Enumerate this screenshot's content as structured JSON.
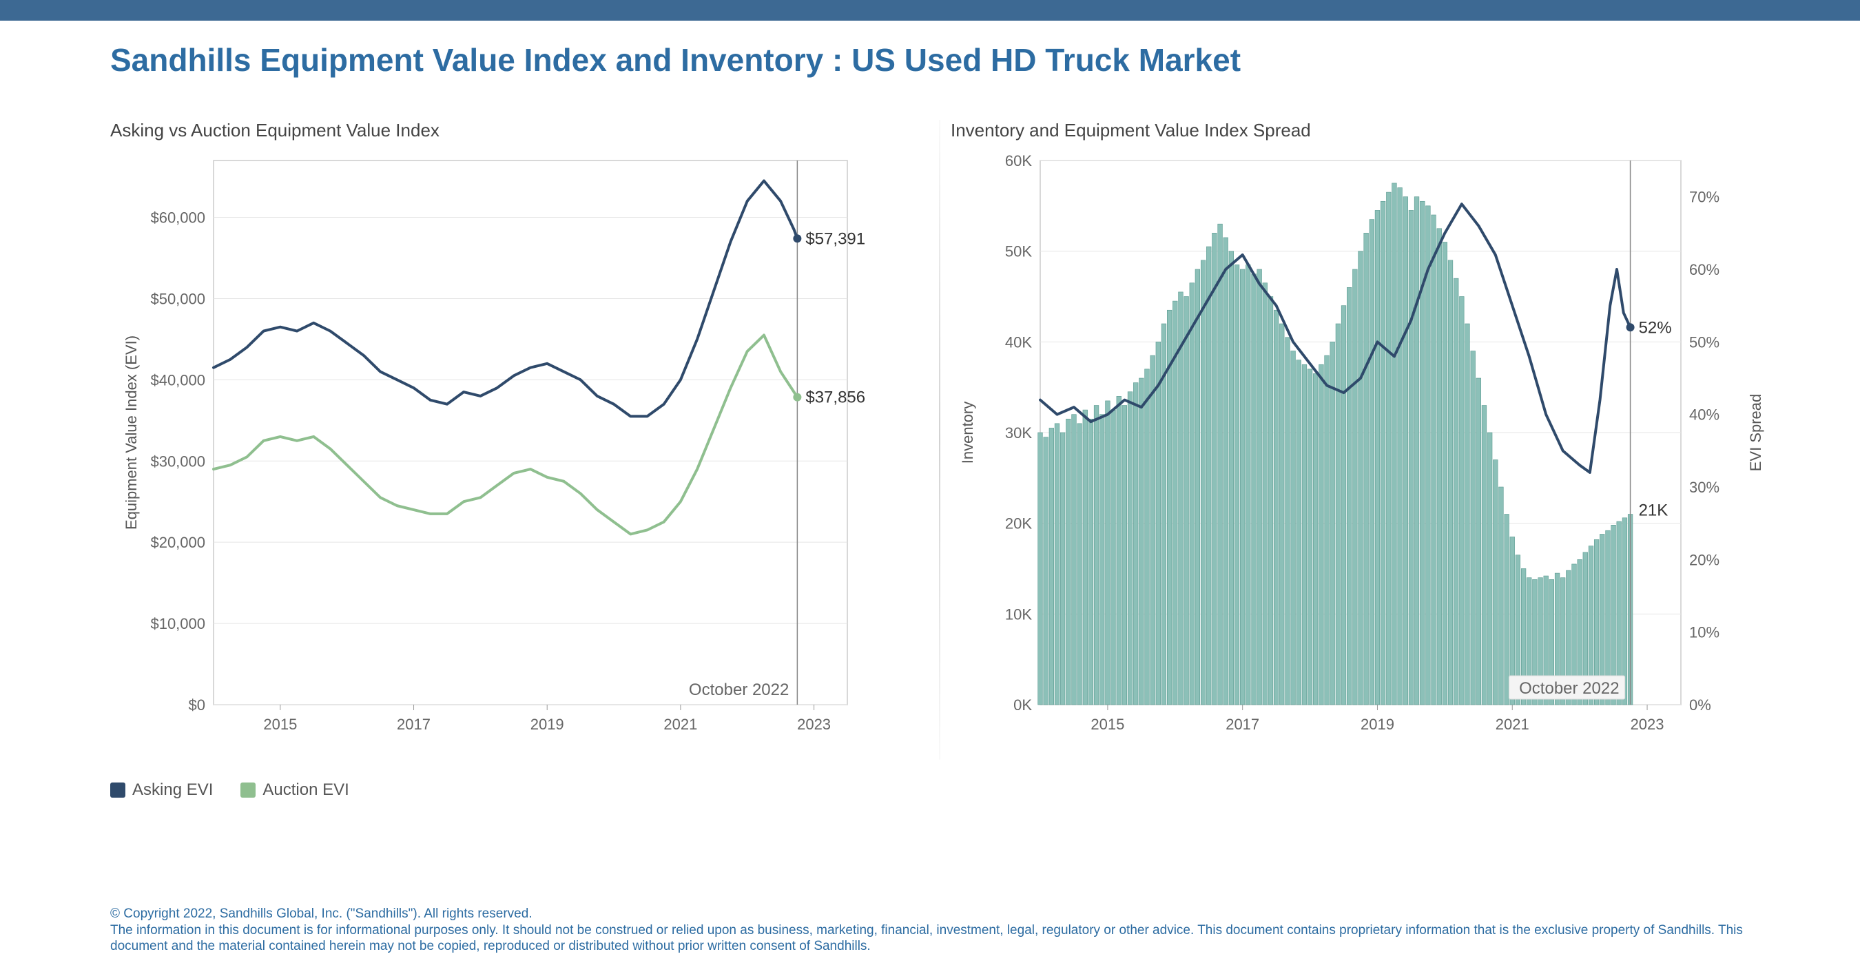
{
  "title": "Sandhills Equipment Value Index and Inventory : US Used HD Truck Market",
  "colors": {
    "top_bar": "#3d6993",
    "title": "#2d6ca2",
    "asking_line": "#2f4a6b",
    "auction_line": "#8fbf8f",
    "bar_fill": "#8cc0b8",
    "bar_stroke": "#5a9a90",
    "grid": "#e5e5e5",
    "border": "#cccccc",
    "text": "#555555",
    "callout": "#333333",
    "footer": "#2d6ca2"
  },
  "left_chart": {
    "title": "Asking vs Auction Equipment Value Index",
    "ylabel": "Equipment Value Index (EVI)",
    "x_domain": [
      2014,
      2023.5
    ],
    "x_ticks": [
      2015,
      2017,
      2019,
      2021,
      2023
    ],
    "y_domain": [
      0,
      67000
    ],
    "y_ticks": [
      0,
      10000,
      20000,
      30000,
      40000,
      50000,
      60000
    ],
    "y_tick_labels": [
      "$0",
      "$10,000",
      "$20,000",
      "$30,000",
      "$40,000",
      "$50,000",
      "$60,000"
    ],
    "date_tag": "October 2022",
    "marker_x": 2022.75,
    "asking": {
      "color": "#2f4a6b",
      "width": 4,
      "callout_label": "$57,391",
      "callout_value": 57391,
      "points": [
        [
          2014.0,
          41500
        ],
        [
          2014.25,
          42500
        ],
        [
          2014.5,
          44000
        ],
        [
          2014.75,
          46000
        ],
        [
          2015.0,
          46500
        ],
        [
          2015.25,
          46000
        ],
        [
          2015.5,
          47000
        ],
        [
          2015.75,
          46000
        ],
        [
          2016.0,
          44500
        ],
        [
          2016.25,
          43000
        ],
        [
          2016.5,
          41000
        ],
        [
          2016.75,
          40000
        ],
        [
          2017.0,
          39000
        ],
        [
          2017.25,
          37500
        ],
        [
          2017.5,
          37000
        ],
        [
          2017.75,
          38500
        ],
        [
          2018.0,
          38000
        ],
        [
          2018.25,
          39000
        ],
        [
          2018.5,
          40500
        ],
        [
          2018.75,
          41500
        ],
        [
          2019.0,
          42000
        ],
        [
          2019.25,
          41000
        ],
        [
          2019.5,
          40000
        ],
        [
          2019.75,
          38000
        ],
        [
          2020.0,
          37000
        ],
        [
          2020.25,
          35500
        ],
        [
          2020.5,
          35500
        ],
        [
          2020.75,
          37000
        ],
        [
          2021.0,
          40000
        ],
        [
          2021.25,
          45000
        ],
        [
          2021.5,
          51000
        ],
        [
          2021.75,
          57000
        ],
        [
          2022.0,
          62000
        ],
        [
          2022.25,
          64500
        ],
        [
          2022.5,
          62000
        ],
        [
          2022.7,
          58500
        ],
        [
          2022.75,
          57391
        ]
      ]
    },
    "auction": {
      "color": "#8fbf8f",
      "width": 4,
      "callout_label": "$37,856",
      "callout_value": 37856,
      "points": [
        [
          2014.0,
          29000
        ],
        [
          2014.25,
          29500
        ],
        [
          2014.5,
          30500
        ],
        [
          2014.75,
          32500
        ],
        [
          2015.0,
          33000
        ],
        [
          2015.25,
          32500
        ],
        [
          2015.5,
          33000
        ],
        [
          2015.75,
          31500
        ],
        [
          2016.0,
          29500
        ],
        [
          2016.25,
          27500
        ],
        [
          2016.5,
          25500
        ],
        [
          2016.75,
          24500
        ],
        [
          2017.0,
          24000
        ],
        [
          2017.25,
          23500
        ],
        [
          2017.5,
          23500
        ],
        [
          2017.75,
          25000
        ],
        [
          2018.0,
          25500
        ],
        [
          2018.25,
          27000
        ],
        [
          2018.5,
          28500
        ],
        [
          2018.75,
          29000
        ],
        [
          2019.0,
          28000
        ],
        [
          2019.25,
          27500
        ],
        [
          2019.5,
          26000
        ],
        [
          2019.75,
          24000
        ],
        [
          2020.0,
          22500
        ],
        [
          2020.25,
          21000
        ],
        [
          2020.5,
          21500
        ],
        [
          2020.75,
          22500
        ],
        [
          2021.0,
          25000
        ],
        [
          2021.25,
          29000
        ],
        [
          2021.5,
          34000
        ],
        [
          2021.75,
          39000
        ],
        [
          2022.0,
          43500
        ],
        [
          2022.25,
          45500
        ],
        [
          2022.5,
          41000
        ],
        [
          2022.7,
          38500
        ],
        [
          2022.75,
          37856
        ]
      ]
    }
  },
  "right_chart": {
    "title": "Inventory and Equipment Value Index Spread",
    "ylabel_left": "Inventory",
    "ylabel_right": "EVI Spread",
    "x_domain": [
      2014,
      2023.5
    ],
    "x_ticks": [
      2015,
      2017,
      2019,
      2021,
      2023
    ],
    "yL_domain": [
      0,
      60000
    ],
    "yL_ticks": [
      0,
      10000,
      20000,
      30000,
      40000,
      50000,
      60000
    ],
    "yL_tick_labels": [
      "0K",
      "10K",
      "20K",
      "30K",
      "40K",
      "50K",
      "60K"
    ],
    "yR_domain": [
      0,
      75
    ],
    "yR_ticks": [
      0,
      10,
      20,
      30,
      40,
      50,
      60,
      70
    ],
    "yR_tick_labels": [
      "0%",
      "10%",
      "20%",
      "30%",
      "40%",
      "50%",
      "60%",
      "70%"
    ],
    "date_tag": "October 2022",
    "marker_x": 2022.75,
    "bars": {
      "color_fill": "#8cc0b8",
      "color_stroke": "#5a9a90",
      "callout_label": "21K",
      "points": [
        [
          2014.0,
          30000
        ],
        [
          2014.083,
          29500
        ],
        [
          2014.167,
          30500
        ],
        [
          2014.25,
          31000
        ],
        [
          2014.333,
          30000
        ],
        [
          2014.417,
          31500
        ],
        [
          2014.5,
          32000
        ],
        [
          2014.583,
          31000
        ],
        [
          2014.667,
          32500
        ],
        [
          2014.75,
          31500
        ],
        [
          2014.833,
          33000
        ],
        [
          2014.917,
          32000
        ],
        [
          2015.0,
          33500
        ],
        [
          2015.083,
          32500
        ],
        [
          2015.167,
          34000
        ],
        [
          2015.25,
          33000
        ],
        [
          2015.333,
          34500
        ],
        [
          2015.417,
          35500
        ],
        [
          2015.5,
          36000
        ],
        [
          2015.583,
          37000
        ],
        [
          2015.667,
          38500
        ],
        [
          2015.75,
          40000
        ],
        [
          2015.833,
          42000
        ],
        [
          2015.917,
          43500
        ],
        [
          2016.0,
          44500
        ],
        [
          2016.083,
          45500
        ],
        [
          2016.167,
          45000
        ],
        [
          2016.25,
          46500
        ],
        [
          2016.333,
          48000
        ],
        [
          2016.417,
          49000
        ],
        [
          2016.5,
          50500
        ],
        [
          2016.583,
          52000
        ],
        [
          2016.667,
          53000
        ],
        [
          2016.75,
          51500
        ],
        [
          2016.833,
          50000
        ],
        [
          2016.917,
          48500
        ],
        [
          2017.0,
          48000
        ],
        [
          2017.083,
          48500
        ],
        [
          2017.167,
          47500
        ],
        [
          2017.25,
          48000
        ],
        [
          2017.333,
          46500
        ],
        [
          2017.417,
          45000
        ],
        [
          2017.5,
          43500
        ],
        [
          2017.583,
          42000
        ],
        [
          2017.667,
          40500
        ],
        [
          2017.75,
          39000
        ],
        [
          2017.833,
          38000
        ],
        [
          2017.917,
          37500
        ],
        [
          2018.0,
          37000
        ],
        [
          2018.083,
          36500
        ],
        [
          2018.167,
          37500
        ],
        [
          2018.25,
          38500
        ],
        [
          2018.333,
          40000
        ],
        [
          2018.417,
          42000
        ],
        [
          2018.5,
          44000
        ],
        [
          2018.583,
          46000
        ],
        [
          2018.667,
          48000
        ],
        [
          2018.75,
          50000
        ],
        [
          2018.833,
          52000
        ],
        [
          2018.917,
          53500
        ],
        [
          2019.0,
          54500
        ],
        [
          2019.083,
          55500
        ],
        [
          2019.167,
          56500
        ],
        [
          2019.25,
          57500
        ],
        [
          2019.333,
          57000
        ],
        [
          2019.417,
          56000
        ],
        [
          2019.5,
          54500
        ],
        [
          2019.583,
          56000
        ],
        [
          2019.667,
          55500
        ],
        [
          2019.75,
          55000
        ],
        [
          2019.833,
          54000
        ],
        [
          2019.917,
          52500
        ],
        [
          2020.0,
          51000
        ],
        [
          2020.083,
          49000
        ],
        [
          2020.167,
          47000
        ],
        [
          2020.25,
          45000
        ],
        [
          2020.333,
          42000
        ],
        [
          2020.417,
          39000
        ],
        [
          2020.5,
          36000
        ],
        [
          2020.583,
          33000
        ],
        [
          2020.667,
          30000
        ],
        [
          2020.75,
          27000
        ],
        [
          2020.833,
          24000
        ],
        [
          2020.917,
          21000
        ],
        [
          2021.0,
          18500
        ],
        [
          2021.083,
          16500
        ],
        [
          2021.167,
          15000
        ],
        [
          2021.25,
          14000
        ],
        [
          2021.333,
          13800
        ],
        [
          2021.417,
          14000
        ],
        [
          2021.5,
          14200
        ],
        [
          2021.583,
          13800
        ],
        [
          2021.667,
          14500
        ],
        [
          2021.75,
          14000
        ],
        [
          2021.833,
          14800
        ],
        [
          2021.917,
          15500
        ],
        [
          2022.0,
          16000
        ],
        [
          2022.083,
          16800
        ],
        [
          2022.167,
          17500
        ],
        [
          2022.25,
          18200
        ],
        [
          2022.333,
          18800
        ],
        [
          2022.417,
          19200
        ],
        [
          2022.5,
          19800
        ],
        [
          2022.583,
          20200
        ],
        [
          2022.667,
          20600
        ],
        [
          2022.75,
          21000
        ]
      ]
    },
    "spread_line": {
      "color": "#2f4a6b",
      "width": 4,
      "callout_label": "52%",
      "callout_value": 52,
      "points": [
        [
          2014.0,
          42
        ],
        [
          2014.25,
          40
        ],
        [
          2014.5,
          41
        ],
        [
          2014.75,
          39
        ],
        [
          2015.0,
          40
        ],
        [
          2015.25,
          42
        ],
        [
          2015.5,
          41
        ],
        [
          2015.75,
          44
        ],
        [
          2016.0,
          48
        ],
        [
          2016.25,
          52
        ],
        [
          2016.5,
          56
        ],
        [
          2016.75,
          60
        ],
        [
          2017.0,
          62
        ],
        [
          2017.25,
          58
        ],
        [
          2017.5,
          55
        ],
        [
          2017.75,
          50
        ],
        [
          2018.0,
          47
        ],
        [
          2018.25,
          44
        ],
        [
          2018.5,
          43
        ],
        [
          2018.75,
          45
        ],
        [
          2019.0,
          50
        ],
        [
          2019.25,
          48
        ],
        [
          2019.5,
          53
        ],
        [
          2019.75,
          60
        ],
        [
          2020.0,
          65
        ],
        [
          2020.25,
          69
        ],
        [
          2020.5,
          66
        ],
        [
          2020.75,
          62
        ],
        [
          2021.0,
          55
        ],
        [
          2021.25,
          48
        ],
        [
          2021.5,
          40
        ],
        [
          2021.75,
          35
        ],
        [
          2022.0,
          33
        ],
        [
          2022.15,
          32
        ],
        [
          2022.3,
          42
        ],
        [
          2022.45,
          55
        ],
        [
          2022.55,
          60
        ],
        [
          2022.65,
          54
        ],
        [
          2022.75,
          52
        ]
      ]
    }
  },
  "legend": {
    "items": [
      {
        "label": "Asking EVI",
        "color": "#2f4a6b"
      },
      {
        "label": "Auction EVI",
        "color": "#8fbf8f"
      }
    ]
  },
  "footer": {
    "line1": "© Copyright 2022, Sandhills Global, Inc. (\"Sandhills\"). All rights reserved.",
    "line2": "The information in this document is for informational purposes only.  It should not be construed or relied upon as business, marketing, financial, investment, legal, regulatory or other advice. This document contains proprietary information that is the exclusive property of Sandhills. This document and the material contained herein may not be copied, reproduced or distributed without prior written consent of Sandhills."
  }
}
